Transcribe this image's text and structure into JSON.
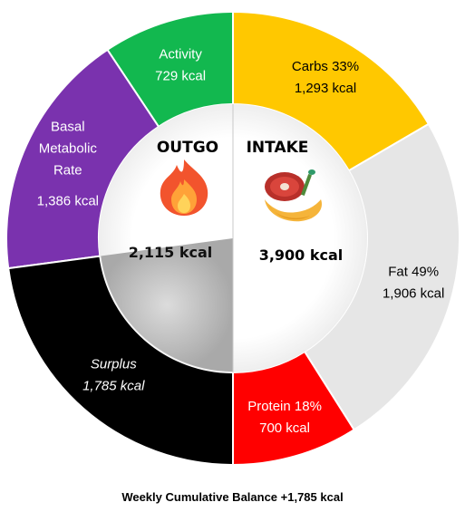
{
  "chart_data": {
    "type": "pie",
    "title": "",
    "series": [
      {
        "name": "OUTGO",
        "total_label": "2,115 kcal",
        "segments": [
          {
            "label": "Activity",
            "value": 729,
            "value_label": "729 kcal",
            "color": "#12b84f",
            "text_color": "#ffffff"
          },
          {
            "label": "Basal Metabolic Rate",
            "label_lines": [
              "Basal",
              "Metabolic",
              "Rate"
            ],
            "value": 1386,
            "value_label": "1,386 kcal",
            "color": "#7a32ae",
            "text_color": "#ffffff"
          },
          {
            "label": "Surplus",
            "value": 1785,
            "value_label": "1,785 kcal",
            "color": "#000000",
            "text_color": "#ffffff",
            "italic": true
          }
        ]
      },
      {
        "name": "INTAKE",
        "total_label": "3,900 kcal",
        "segments": [
          {
            "label": "Carbs 33%",
            "value": 1293,
            "value_label": "1,293 kcal",
            "color": "#ffc800",
            "text_color": "#000000"
          },
          {
            "label": "Fat 49%",
            "value": 1906,
            "value_label": "1,906 kcal",
            "color": "#e6e6e6",
            "text_color": "#000000"
          },
          {
            "label": "Protein 18%",
            "value": 700,
            "value_label": "700 kcal",
            "color": "#ff0000",
            "text_color": "#ffffff"
          }
        ]
      }
    ],
    "center": {
      "outgo_title": "OUTGO",
      "intake_title": "INTAKE"
    },
    "icons": {
      "outgo": "fire-icon",
      "intake": "food-icon"
    }
  },
  "footer": "Weekly Cumulative Balance +1,785 kcal"
}
